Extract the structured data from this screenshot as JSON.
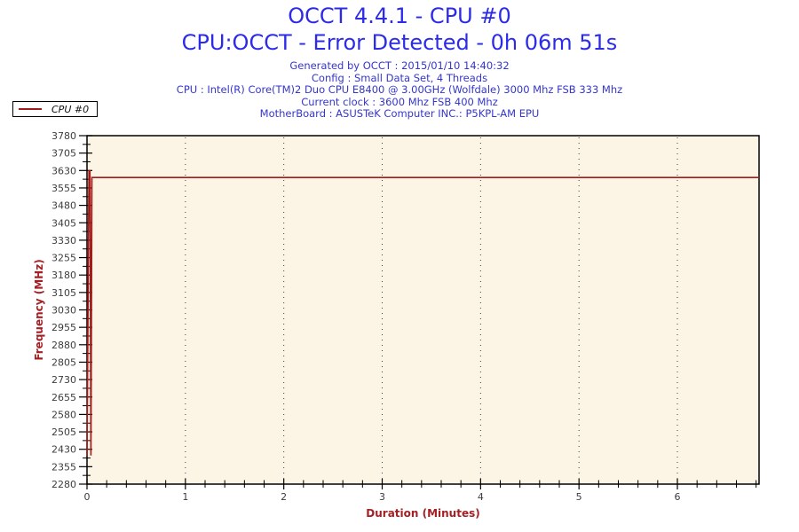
{
  "header": {
    "title_line1": "OCCT 4.4.1 - CPU #0",
    "title_line2": "CPU:OCCT - Error Detected - 0h 06m 51s",
    "info_lines": [
      "Generated by OCCT : 2015/01/10 14:40:32",
      "Config : Small Data Set, 4 Threads",
      "CPU : Intel(R) Core(TM)2 Duo CPU E8400 @ 3.00GHz (Wolfdale) 3000 Mhz FSB 333 Mhz",
      "Current clock : 3600 Mhz FSB 400 Mhz",
      "MotherBoard : ASUSTeK Computer INC.: P5KPL-AM EPU"
    ]
  },
  "legend": {
    "items": [
      {
        "label": "CPU #0",
        "color": "#A21A1A"
      }
    ]
  },
  "colors": {
    "title": "#2B2BE8",
    "info": "#3636CC",
    "axis_label": "#A52025",
    "series": "#A21A1A",
    "plot_bg": "#FCF5E6",
    "plot_border": "#000000",
    "tick": "#000000",
    "tick_label": "#3D3D3D",
    "grid": "#3C3C3C"
  },
  "chart_data": {
    "type": "line",
    "title": "OCCT 4.4.1 - CPU #0",
    "subtitle": "CPU:OCCT - Error Detected - 0h 06m 51s",
    "xlabel": "Duration (Minutes)",
    "ylabel": "Frequency (MHz)",
    "xlim": [
      0,
      6.83
    ],
    "ylim": [
      2280,
      3780
    ],
    "x_major_ticks": [
      0,
      1,
      2,
      3,
      4,
      5,
      6
    ],
    "x_minor_step": 0.2,
    "y_tick_values": [
      2280,
      2355,
      2430,
      2505,
      2580,
      2655,
      2730,
      2805,
      2880,
      2955,
      3030,
      3105,
      3180,
      3255,
      3330,
      3405,
      3480,
      3555,
      3630,
      3705,
      3780
    ],
    "y_minor_step": 37.5,
    "grid": "vertical-dotted",
    "legend_position": "top-left-outside",
    "series": [
      {
        "name": "CPU #0",
        "color": "#A21A1A",
        "points": [
          [
            0.0,
            2403
          ],
          [
            0.02,
            3630
          ],
          [
            0.03,
            3630
          ],
          [
            0.04,
            2403
          ],
          [
            0.05,
            3600
          ],
          [
            6.83,
            3600
          ]
        ]
      }
    ]
  }
}
